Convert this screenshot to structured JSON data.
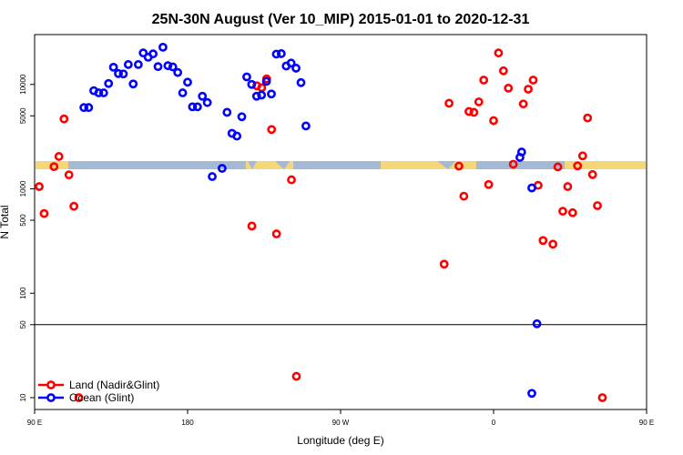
{
  "chart_data": {
    "type": "scatter",
    "title": "25N-30N August (Ver 10_MIP)   2015-01-01 to 2020-12-31",
    "xlabel": "Longitude (deg E)",
    "ylabel": "N Total",
    "y_scale": "log",
    "xlim": [
      90,
      450
    ],
    "ylim": [
      7.7,
      30000
    ],
    "x_ticks": [
      {
        "value": 90,
        "label": "90 E"
      },
      {
        "value": 180,
        "label": "180"
      },
      {
        "value": 270,
        "label": "90 W"
      },
      {
        "value": 360,
        "label": "0"
      },
      {
        "value": 450,
        "label": "90 E"
      },
      {
        "value": 540,
        "label": "180"
      }
    ],
    "y_ticks": [
      {
        "value": 10,
        "label": "10"
      },
      {
        "value": 50,
        "label": "50"
      },
      {
        "value": 100,
        "label": "100"
      },
      {
        "value": 500,
        "label": "500"
      },
      {
        "value": 1000,
        "label": "1000"
      },
      {
        "value": 5000,
        "label": "5000"
      },
      {
        "value": 10000,
        "label": "10000"
      }
    ],
    "reference_line": 50,
    "grid": false,
    "legend_position": "bottom-left",
    "land_colors": [
      "#f5d777",
      "#a3b9d6"
    ],
    "series": [
      {
        "name": "Land (Nadir&Glint)",
        "color": "#ff0000",
        "points": [
          [
            92.7,
            1050
          ],
          [
            95.6,
            580
          ],
          [
            101.4,
            1630
          ],
          [
            104.3,
            2040
          ],
          [
            107.3,
            4670
          ],
          [
            110.2,
            1360
          ],
          [
            113.1,
            680
          ],
          [
            116.0,
            10
          ],
          [
            217.8,
            440
          ],
          [
            220.7,
            9700
          ],
          [
            223.6,
            9300
          ],
          [
            226.5,
            11300
          ],
          [
            229.4,
            3700
          ],
          [
            232.3,
            370
          ],
          [
            241.1,
            1220
          ],
          [
            244.0,
            16
          ],
          [
            330.9,
            190
          ],
          [
            333.8,
            6600
          ],
          [
            339.6,
            1650
          ],
          [
            342.5,
            850
          ],
          [
            345.5,
            5500
          ],
          [
            348.4,
            5400
          ],
          [
            351.3,
            6800
          ],
          [
            354.2,
            11000
          ],
          [
            357.1,
            1100
          ],
          [
            360.0,
            4500
          ],
          [
            362.9,
            20000
          ],
          [
            365.8,
            13500
          ],
          [
            368.7,
            9200
          ],
          [
            371.6,
            1720
          ],
          [
            377.5,
            6500
          ],
          [
            380.4,
            9000
          ],
          [
            383.3,
            11000
          ],
          [
            386.2,
            1080
          ],
          [
            389.1,
            320
          ],
          [
            394.9,
            295
          ],
          [
            397.8,
            1620
          ],
          [
            400.7,
            610
          ],
          [
            403.6,
            1050
          ],
          [
            406.5,
            590
          ],
          [
            409.4,
            1660
          ],
          [
            412.4,
            2070
          ],
          [
            415.3,
            4770
          ],
          [
            418.2,
            1370
          ],
          [
            421.1,
            690
          ],
          [
            424.0,
            10
          ]
        ]
      },
      {
        "name": "Ocean (Glint)",
        "color": "#0000ff",
        "points": [
          [
            119.0,
            6000
          ],
          [
            121.8,
            6000
          ],
          [
            124.8,
            8700
          ],
          [
            127.7,
            8300
          ],
          [
            130.6,
            8300
          ],
          [
            133.5,
            10200
          ],
          [
            136.4,
            14600
          ],
          [
            139.3,
            12700
          ],
          [
            142.2,
            12600
          ],
          [
            145.1,
            15500
          ],
          [
            148.0,
            10100
          ],
          [
            151.0,
            15500
          ],
          [
            153.9,
            20000
          ],
          [
            156.8,
            18200
          ],
          [
            159.7,
            19600
          ],
          [
            162.6,
            14800
          ],
          [
            165.5,
            22700
          ],
          [
            168.4,
            15100
          ],
          [
            171.3,
            14700
          ],
          [
            174.2,
            13000
          ],
          [
            177.1,
            8300
          ],
          [
            180.0,
            10500
          ],
          [
            182.9,
            6100
          ],
          [
            185.8,
            6100
          ],
          [
            188.7,
            7700
          ],
          [
            191.6,
            6700
          ],
          [
            194.5,
            1310
          ],
          [
            200.3,
            1570
          ],
          [
            203.2,
            5400
          ],
          [
            206.1,
            3400
          ],
          [
            209.0,
            3200
          ],
          [
            211.9,
            4900
          ],
          [
            214.8,
            11800
          ],
          [
            217.7,
            10000
          ],
          [
            220.6,
            7700
          ],
          [
            223.5,
            7900
          ],
          [
            226.4,
            10700
          ],
          [
            229.3,
            8100
          ],
          [
            232.2,
            19500
          ],
          [
            235.1,
            19700
          ],
          [
            238.0,
            15000
          ],
          [
            240.9,
            16000
          ],
          [
            243.8,
            14300
          ],
          [
            246.7,
            10400
          ],
          [
            249.6,
            4000
          ],
          [
            375.5,
            2000
          ],
          [
            376.5,
            2250
          ],
          [
            382.5,
            1020
          ],
          [
            385.5,
            51
          ],
          [
            382.5,
            11
          ]
        ]
      }
    ]
  }
}
